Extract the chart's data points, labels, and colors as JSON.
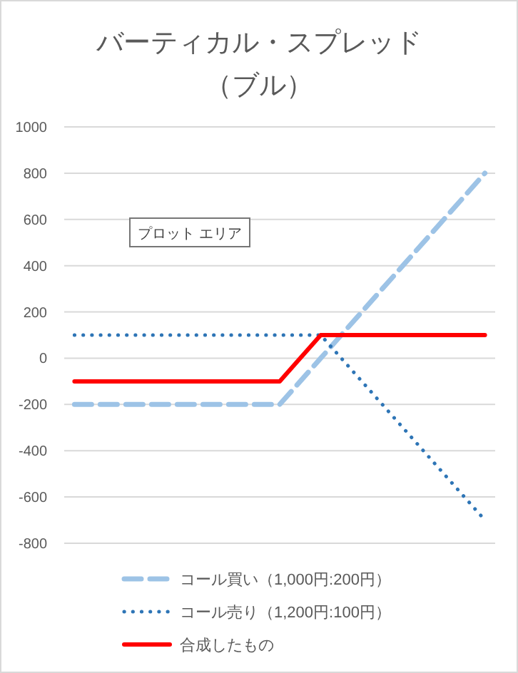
{
  "chart_data": {
    "type": "line",
    "title": "バーティカル・スプレッド",
    "subtitle": "（ブル）",
    "categories": [
      null,
      null,
      null,
      null,
      null,
      null,
      null,
      null,
      null,
      null,
      null
    ],
    "series": [
      {
        "name": "コール買い（1,000円:200円）",
        "color": "#9dc3e6",
        "line_style": "dashed",
        "values": [
          -200,
          -200,
          -200,
          -200,
          -200,
          -200,
          0,
          200,
          400,
          600,
          800
        ]
      },
      {
        "name": "コール売り（1,200円:100円）",
        "color": "#2e75b6",
        "line_style": "dotted",
        "values": [
          100,
          100,
          100,
          100,
          100,
          100,
          100,
          -100,
          -300,
          -500,
          -700
        ]
      },
      {
        "name": "合成したもの",
        "color": "#ff0000",
        "line_style": "solid",
        "values": [
          -100,
          -100,
          -100,
          -100,
          -100,
          -100,
          100,
          100,
          100,
          100,
          100
        ]
      }
    ],
    "ylim": [
      -800,
      1000
    ],
    "yticks": [
      -800,
      -600,
      -400,
      -200,
      0,
      200,
      400,
      600,
      800,
      1000
    ],
    "grid": "y",
    "legend": "bottom",
    "tick_labels": "y",
    "annotations": [
      "プロット エリア"
    ]
  }
}
